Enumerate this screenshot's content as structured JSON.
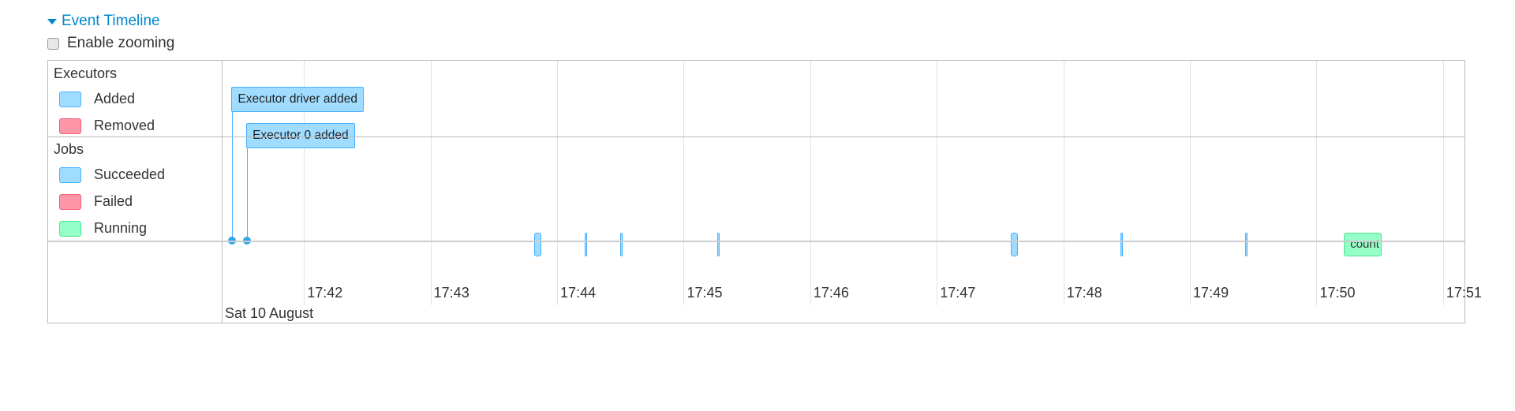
{
  "header": {
    "title": "Event Timeline",
    "expanded": true
  },
  "zoom": {
    "label": "Enable zooming",
    "checked": false
  },
  "groups": {
    "executors": {
      "title": "Executors",
      "legend": [
        {
          "label": "Added",
          "fill": "#a0dcff",
          "border": "#47b0ff"
        },
        {
          "label": "Removed",
          "fill": "#ff96a8",
          "border": "#f0607a"
        }
      ]
    },
    "jobs": {
      "title": "Jobs",
      "legend": [
        {
          "label": "Succeeded",
          "fill": "#a0dcff",
          "border": "#47b0ff"
        },
        {
          "label": "Failed",
          "fill": "#ff96a8",
          "border": "#f0607a"
        },
        {
          "label": "Running",
          "fill": "#96ffc8",
          "border": "#4ce68c"
        }
      ]
    }
  },
  "axis": {
    "date_label": "Sat 10 August",
    "start": "17:41:21",
    "ticks": [
      "17:42",
      "17:43",
      "17:44",
      "17:45",
      "17:46",
      "17:47",
      "17:48",
      "17:49",
      "17:50",
      "17:51"
    ]
  },
  "executor_events": [
    {
      "label": "Executor driver added",
      "time": "17:41:26"
    },
    {
      "label": "Executor 0 added",
      "time": "17:41:33"
    }
  ],
  "jobs": [
    {
      "start": "17:43:49",
      "end": "17:43:52",
      "status": "succeeded"
    },
    {
      "start": "17:44:13",
      "end": "17:44:13",
      "status": "succeeded"
    },
    {
      "start": "17:44:30",
      "end": "17:44:30",
      "status": "succeeded"
    },
    {
      "start": "17:45:16",
      "end": "17:45:16",
      "status": "succeeded"
    },
    {
      "start": "17:47:35",
      "end": "17:47:37",
      "status": "succeeded"
    },
    {
      "start": "17:48:27",
      "end": "17:48:27",
      "status": "succeeded"
    },
    {
      "start": "17:49:26",
      "end": "17:49:26",
      "status": "succeeded"
    },
    {
      "start": "17:50:13",
      "end": "17:50:31",
      "status": "running",
      "label": "count"
    }
  ]
}
